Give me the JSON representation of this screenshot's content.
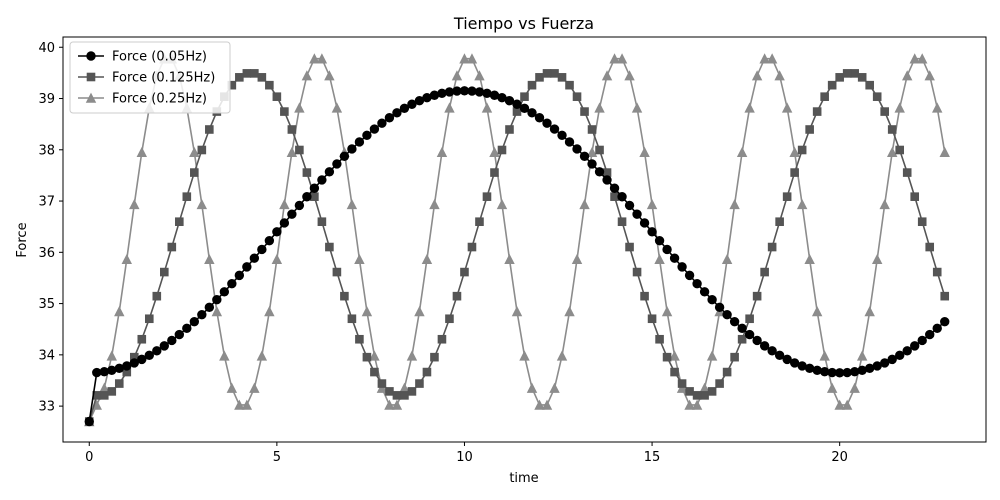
{
  "chart_data": {
    "type": "line",
    "title": "Tiempo vs Fuerza",
    "xlabel": "time",
    "ylabel": "Force",
    "xlim": [
      -0.7,
      23.9
    ],
    "ylim": [
      32.3,
      40.2
    ],
    "xticks": [
      0,
      5,
      10,
      15,
      20
    ],
    "yticks": [
      33,
      34,
      35,
      36,
      37,
      38,
      39,
      40
    ],
    "grid": false,
    "legend_position": "top-left",
    "x_step": 0.2,
    "x_max": 22.8,
    "series": [
      {
        "name": "Force (0.05Hz)",
        "color": "#000000",
        "marker": "circle",
        "baseline": 32.7,
        "offset": 36.4,
        "amplitude": 2.75,
        "frequency": 0.05,
        "peak_time": 10.0
      },
      {
        "name": "Force (0.125Hz)",
        "color": "#555555",
        "marker": "square",
        "baseline": 32.7,
        "offset": 36.35,
        "amplitude": 3.15,
        "frequency": 0.125,
        "peak_time": 4.3
      },
      {
        "name": "Force (0.25Hz)",
        "color": "#8c8c8c",
        "marker": "triangle",
        "baseline": 32.7,
        "offset": 36.4,
        "amplitude": 3.42,
        "frequency": 0.25,
        "peak_time": 2.1
      }
    ]
  }
}
